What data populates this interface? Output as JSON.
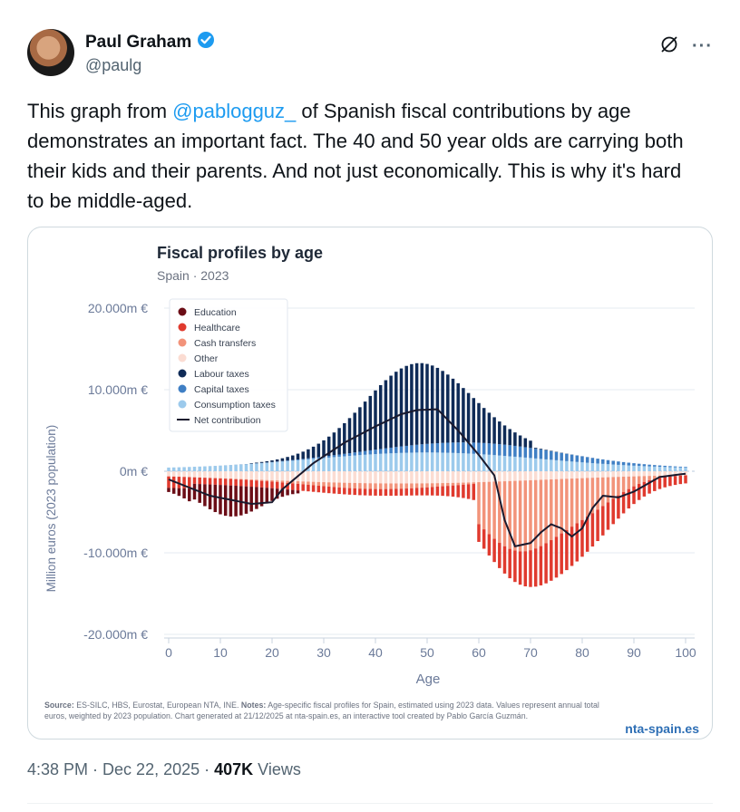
{
  "author": {
    "name": "Paul Graham",
    "handle": "@paulg"
  },
  "tweet": {
    "text_before": "This graph from ",
    "mention": "@pablogguz_",
    "text_after": " of Spanish fiscal contributions by age demonstrates an important fact. The 40 and 50 year olds are carrying both their kids and their parents. And not just economically. This is why it's hard to be middle-aged."
  },
  "meta": {
    "time": "4:38 PM",
    "date": "Dec 22, 2025",
    "views_count": "407K",
    "views_label": "Views"
  },
  "icons": {
    "verified": "verified-badge-icon",
    "grok": "grok-icon",
    "more": "more-icon"
  },
  "colors": {
    "education": "#6b0d16",
    "healthcare": "#e03a2e",
    "cash": "#f2937a",
    "other": "#fbdcd2",
    "labour": "#0f2b57",
    "capital": "#3f7fc4",
    "consumption": "#9ccaec",
    "net": "#1a1a2e",
    "link": "#1d9bf0"
  },
  "chart_data": {
    "type": "bar",
    "title": "Fiscal profiles by age",
    "subtitle": "Spain · 2023",
    "xlabel": "Age",
    "ylabel": "Million euros (2023 population)",
    "xlim": [
      0,
      100
    ],
    "ylim": [
      -20000,
      20000
    ],
    "x_ticks": [
      "0",
      "10",
      "20",
      "30",
      "40",
      "50",
      "60",
      "70",
      "80",
      "90",
      "100"
    ],
    "y_ticks": [
      {
        "value": 20000,
        "label": "20.000m €"
      },
      {
        "value": 10000,
        "label": "10.000m €"
      },
      {
        "value": 0,
        "label": "0m €"
      },
      {
        "value": -10000,
        "label": "-10.000m €"
      },
      {
        "value": -20000,
        "label": "-20.000m €"
      }
    ],
    "legend": [
      "Education",
      "Healthcare",
      "Cash transfers",
      "Other",
      "Labour taxes",
      "Capital taxes",
      "Consumption taxes",
      "Net contribution"
    ],
    "key_points_net": [
      [
        0,
        -1000
      ],
      [
        8,
        -3000
      ],
      [
        16,
        -4000
      ],
      [
        20,
        -3800
      ],
      [
        22,
        -2200
      ],
      [
        28,
        1000
      ],
      [
        34,
        3500
      ],
      [
        40,
        5500
      ],
      [
        45,
        7000
      ],
      [
        48,
        7500
      ],
      [
        52,
        7600
      ],
      [
        56,
        5000
      ],
      [
        60,
        2000
      ],
      [
        63,
        -500
      ],
      [
        65,
        -6000
      ],
      [
        67,
        -9200
      ],
      [
        70,
        -8800
      ],
      [
        72,
        -7500
      ],
      [
        74,
        -6500
      ],
      [
        76,
        -7000
      ],
      [
        78,
        -8000
      ],
      [
        80,
        -7000
      ],
      [
        82,
        -4500
      ],
      [
        84,
        -3000
      ],
      [
        87,
        -3200
      ],
      [
        90,
        -2500
      ],
      [
        95,
        -700
      ],
      [
        100,
        -300
      ]
    ],
    "source_label": "Source:",
    "source_text": " ES-SILC, HBS, Eurostat, European NTA, INE. ",
    "notes_label": "Notes:",
    "notes_text": " Age-specific fiscal profiles for Spain, estimated using 2023 data. Values represent annual total euros, weighted by 2023 population. Chart generated at 21/12/2025 at nta-spain.es, an interactive tool created by Pablo García Guzmán.",
    "brand": "nta-spain.es"
  }
}
